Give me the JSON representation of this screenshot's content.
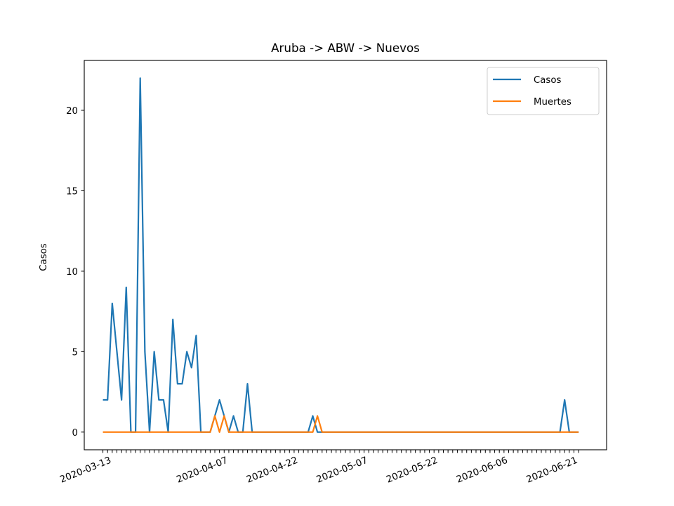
{
  "chart_data": {
    "type": "line",
    "title": "Aruba -> ABW -> Nuevos",
    "xlabel": "",
    "ylabel": "Casos",
    "x_start": "2020-03-13",
    "x": [
      -1,
      0,
      1,
      2,
      3,
      4,
      5,
      6,
      7,
      8,
      9,
      10,
      11,
      12,
      13,
      14,
      15,
      16,
      17,
      18,
      19,
      20,
      21,
      22,
      23,
      24,
      25,
      26,
      27,
      28,
      29,
      30,
      31,
      32,
      33,
      34,
      35,
      36,
      37,
      38,
      39,
      40,
      41,
      42,
      43,
      44,
      45,
      46,
      47,
      48,
      49,
      50,
      51,
      52,
      53,
      54,
      55,
      56,
      57,
      58,
      59,
      60,
      61,
      62,
      63,
      64,
      65,
      66,
      67,
      68,
      69,
      70,
      71,
      72,
      73,
      74,
      75,
      76,
      77,
      78,
      79,
      80,
      81,
      82,
      83,
      84,
      85,
      86,
      87,
      88,
      89,
      90,
      91,
      92,
      93,
      94,
      95,
      96,
      97,
      98,
      99,
      100,
      101
    ],
    "x_ticks": [
      "2020-03-13",
      "2020-04-07",
      "2020-04-22",
      "2020-05-07",
      "2020-05-22",
      "2020-06-06",
      "2020-06-21"
    ],
    "x_tick_values": [
      0,
      25,
      40,
      55,
      70,
      85,
      100
    ],
    "xlim": [
      -5,
      107
    ],
    "y_ticks": [
      0,
      5,
      10,
      15,
      20
    ],
    "ylim": [
      -1.1,
      23.1
    ],
    "grid": false,
    "legend_position": "top-right",
    "series": [
      {
        "name": "Casos",
        "color": "#1f77b4",
        "values": [
          2,
          2,
          8,
          5,
          2,
          9,
          0,
          0,
          22,
          5,
          0,
          5,
          2,
          2,
          0,
          7,
          3,
          3,
          5,
          4,
          6,
          0,
          0,
          0,
          1,
          2,
          1,
          0,
          1,
          0,
          0,
          3,
          0,
          0,
          0,
          0,
          0,
          0,
          0,
          0,
          0,
          0,
          0,
          0,
          0,
          1,
          0,
          0,
          0,
          0,
          0,
          0,
          0,
          0,
          0,
          0,
          0,
          0,
          0,
          0,
          0,
          0,
          0,
          0,
          0,
          0,
          0,
          0,
          0,
          0,
          0,
          0,
          0,
          0,
          0,
          0,
          0,
          0,
          0,
          0,
          0,
          0,
          0,
          0,
          0,
          0,
          0,
          0,
          0,
          0,
          0,
          0,
          0,
          0,
          0,
          0,
          0,
          0,
          0,
          2,
          0,
          0,
          0
        ]
      },
      {
        "name": "Muertes",
        "color": "#ff7f0e",
        "values": [
          0,
          0,
          0,
          0,
          0,
          0,
          0,
          0,
          0,
          0,
          0,
          0,
          0,
          0,
          0,
          0,
          0,
          0,
          0,
          0,
          0,
          0,
          0,
          0,
          1,
          0,
          1,
          0,
          0,
          0,
          0,
          0,
          0,
          0,
          0,
          0,
          0,
          0,
          0,
          0,
          0,
          0,
          0,
          0,
          0,
          0,
          1,
          0,
          0,
          0,
          0,
          0,
          0,
          0,
          0,
          0,
          0,
          0,
          0,
          0,
          0,
          0,
          0,
          0,
          0,
          0,
          0,
          0,
          0,
          0,
          0,
          0,
          0,
          0,
          0,
          0,
          0,
          0,
          0,
          0,
          0,
          0,
          0,
          0,
          0,
          0,
          0,
          0,
          0,
          0,
          0,
          0,
          0,
          0,
          0,
          0,
          0,
          0,
          0,
          0,
          0,
          0,
          0
        ]
      }
    ]
  }
}
